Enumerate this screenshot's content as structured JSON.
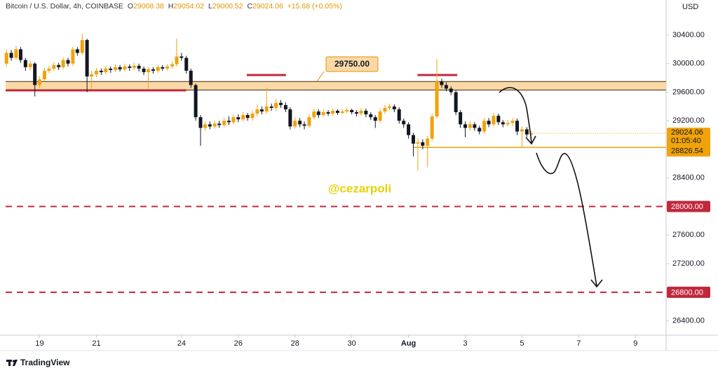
{
  "chart_data": {
    "type": "candlestick",
    "symbol": "Bitcoin / U.S. Dollar, 4h, COINBASE",
    "ohlc_letters": [
      "O",
      "H",
      "L",
      "C"
    ],
    "change": "+15.68",
    "change_pct": "(+0.05%)",
    "currency": "USD",
    "watermark": "@cezarpoli",
    "brand": "TradingView",
    "countdown": "01:05:40",
    "up_color": "#f0a30a",
    "down_color": "#131722",
    "xlim": [
      17.8,
      41.08
    ],
    "ylim": [
      26200,
      30890
    ],
    "xticks": [
      19,
      21,
      24,
      26,
      28,
      30,
      {
        "value": 32,
        "label": "Aug"
      },
      {
        "value": 34,
        "label": "3"
      },
      {
        "value": 36,
        "label": "5"
      },
      {
        "value": 38,
        "label": "7"
      },
      {
        "value": 40,
        "label": "9"
      }
    ],
    "yticks": [
      {
        "value": 26400,
        "label": "26400.00"
      },
      {
        "value": 26800,
        "label": "26800.00"
      },
      {
        "value": 27200,
        "label": "27200.00"
      },
      {
        "value": 27600,
        "label": "27600.00"
      },
      {
        "value": 28000,
        "label": "28000.00"
      },
      {
        "value": 28400,
        "label": "28400.00"
      },
      {
        "value": 28800,
        "label": "28800.00"
      },
      {
        "value": 29200,
        "label": "29200.00"
      },
      {
        "value": 29600,
        "label": "29600.00"
      },
      {
        "value": 30000,
        "label": "30000.00"
      },
      {
        "value": 30400,
        "label": "30400.00"
      }
    ],
    "x": [
      17.83,
      18,
      18.17,
      18.33,
      18.5,
      18.67,
      18.83,
      19,
      19.17,
      19.33,
      19.5,
      19.67,
      19.83,
      20,
      20.17,
      20.33,
      20.5,
      20.67,
      20.83,
      21,
      21.17,
      21.33,
      21.5,
      21.67,
      21.83,
      22,
      22.17,
      22.33,
      22.5,
      22.67,
      22.83,
      23,
      23.17,
      23.33,
      23.5,
      23.67,
      23.83,
      24,
      24.17,
      24.33,
      24.5,
      24.67,
      24.83,
      25,
      25.17,
      25.33,
      25.5,
      25.67,
      25.83,
      26,
      26.17,
      26.33,
      26.5,
      26.67,
      26.83,
      27,
      27.17,
      27.33,
      27.5,
      27.67,
      27.83,
      28,
      28.17,
      28.33,
      28.5,
      28.67,
      28.83,
      29,
      29.17,
      29.33,
      29.5,
      29.67,
      29.83,
      30,
      30.17,
      30.33,
      30.5,
      30.67,
      30.83,
      31,
      31.17,
      31.33,
      31.5,
      31.67,
      31.83,
      32,
      32.17,
      32.33,
      32.5,
      32.67,
      32.83,
      33,
      33.17,
      33.33,
      33.5,
      33.67,
      33.83,
      34,
      34.17,
      34.33,
      34.5,
      34.67,
      34.83,
      35,
      35.17,
      35.33,
      35.5,
      35.67,
      35.83,
      36,
      36.17,
      36.33
    ],
    "open": [
      30000,
      30150,
      30080,
      30200,
      30050,
      29950,
      30000,
      29700,
      29780,
      29900,
      29930,
      29980,
      29950,
      30050,
      30000,
      30200,
      30150,
      30330,
      29820,
      29850,
      29900,
      29880,
      29930,
      29910,
      29950,
      29920,
      29960,
      29940,
      29970,
      29930,
      29880,
      29920,
      29900,
      29950,
      29930,
      29960,
      29990,
      30100,
      30080,
      29900,
      29700,
      29250,
      29100,
      29150,
      29120,
      29160,
      29140,
      29200,
      29180,
      29250,
      29220,
      29280,
      29240,
      29300,
      29360,
      29330,
      29400,
      29380,
      29450,
      29420,
      29360,
      29120,
      29200,
      29150,
      29130,
      29250,
      29330,
      29280,
      29320,
      29300,
      29340,
      29310,
      29330,
      29350,
      29320,
      29300,
      29340,
      29290,
      29250,
      29200,
      29330,
      29380,
      29400,
      29360,
      29200,
      29150,
      29000,
      28880,
      28900,
      28850,
      28950,
      29260,
      29750,
      29700,
      29650,
      29600,
      29320,
      29150,
      29100,
      29150,
      29100,
      29050,
      29200,
      29150,
      29270,
      29180,
      29150,
      29170,
      29200,
      29050,
      29080,
      29008.38
    ],
    "high": [
      30200,
      30190,
      30250,
      30230,
      30080,
      30040,
      30020,
      29820,
      29940,
      29970,
      30020,
      30010,
      30090,
      30080,
      30240,
      30230,
      30420,
      30350,
      29900,
      29940,
      29930,
      29970,
      29960,
      29990,
      29980,
      30000,
      29990,
      30010,
      30000,
      29960,
      29950,
      29950,
      29980,
      29980,
      29990,
      30030,
      30350,
      30150,
      30110,
      29930,
      29720,
      29280,
      29190,
      29190,
      29200,
      29200,
      29240,
      29260,
      29290,
      29290,
      29320,
      29310,
      29340,
      29420,
      29400,
      29660,
      29440,
      29500,
      29490,
      29460,
      29390,
      29250,
      29240,
      29190,
      29290,
      29370,
      29360,
      29360,
      29350,
      29370,
      29360,
      29360,
      29380,
      29370,
      29350,
      29380,
      29370,
      29320,
      29280,
      29370,
      29420,
      29440,
      29430,
      29390,
      29230,
      29180,
      29030,
      28950,
      28940,
      28990,
      29300,
      30060,
      29790,
      29740,
      29680,
      29630,
      29350,
      29190,
      29190,
      29180,
      29130,
      29240,
      29240,
      29310,
      29300,
      29210,
      29210,
      29240,
      29230,
      29120,
      29110,
      29054.02
    ],
    "low": [
      29960,
      30040,
      30050,
      30010,
      29900,
      29910,
      29540,
      29660,
      29750,
      29870,
      29900,
      29910,
      29920,
      29960,
      29970,
      30110,
      30120,
      29600,
      29640,
      29810,
      29840,
      29850,
      29870,
      29880,
      29890,
      29890,
      29900,
      29910,
      29890,
      29840,
      29650,
      29860,
      29870,
      29900,
      29900,
      29930,
      29960,
      30040,
      29860,
      29660,
      29200,
      28850,
      29060,
      29080,
      29090,
      29100,
      29110,
      29140,
      29150,
      29180,
      29190,
      29200,
      29200,
      29260,
      29290,
      29300,
      29340,
      29340,
      29380,
      29320,
      29080,
      29090,
      29110,
      29080,
      29100,
      29220,
      29240,
      29250,
      29270,
      29270,
      29280,
      29290,
      29300,
      29290,
      29260,
      29270,
      29250,
      29210,
      29100,
      29170,
      29300,
      29350,
      29320,
      29160,
      29100,
      28950,
      28700,
      28500,
      28800,
      28550,
      28920,
      29230,
      29660,
      29610,
      29560,
      29280,
      29100,
      28970,
      29060,
      29060,
      29010,
      29020,
      29110,
      29120,
      29140,
      29110,
      29120,
      29130,
      29000,
      28820,
      28970,
      29000.52
    ],
    "close": [
      30150,
      30080,
      30200,
      30050,
      29950,
      30000,
      29700,
      29780,
      29900,
      29930,
      29980,
      29950,
      30050,
      30000,
      30200,
      30150,
      30330,
      29820,
      29850,
      29900,
      29880,
      29930,
      29910,
      29950,
      29920,
      29960,
      29940,
      29970,
      29930,
      29880,
      29920,
      29900,
      29950,
      29930,
      29960,
      29990,
      30100,
      30080,
      29900,
      29700,
      29250,
      29100,
      29150,
      29120,
      29160,
      29140,
      29200,
      29180,
      29250,
      29220,
      29280,
      29240,
      29300,
      29360,
      29330,
      29400,
      29380,
      29450,
      29420,
      29360,
      29120,
      29200,
      29150,
      29130,
      29250,
      29330,
      29280,
      29320,
      29300,
      29340,
      29310,
      29330,
      29350,
      29320,
      29300,
      29340,
      29290,
      29250,
      29200,
      29330,
      29380,
      29400,
      29360,
      29200,
      29150,
      29000,
      28880,
      28900,
      28850,
      28950,
      29260,
      29750,
      29700,
      29650,
      29600,
      29320,
      29150,
      29100,
      29150,
      29100,
      29050,
      29200,
      29150,
      29270,
      29180,
      29150,
      29170,
      29200,
      29050,
      29080,
      29008.38,
      29024.06
    ],
    "zone": {
      "range": [
        29630,
        29750
      ],
      "label": "29750.00",
      "color": "#fbd9a6",
      "edge_color": "#3a2a10"
    },
    "red_segments": [
      {
        "value": 29626,
        "x": [
          17.8,
          24.16
        ]
      },
      {
        "value": 29840,
        "x": [
          26.3,
          27.68
        ]
      },
      {
        "value": 29840,
        "x": [
          32.32,
          33.72
        ]
      }
    ],
    "red_color": "#c0283c",
    "support": {
      "value": 28826.54,
      "x_start": 32.17,
      "color": "#f0a30a"
    },
    "dashed_levels": [
      {
        "value": 28000,
        "label": "28000.00"
      },
      {
        "value": 26800,
        "label": "26800.00"
      }
    ]
  }
}
